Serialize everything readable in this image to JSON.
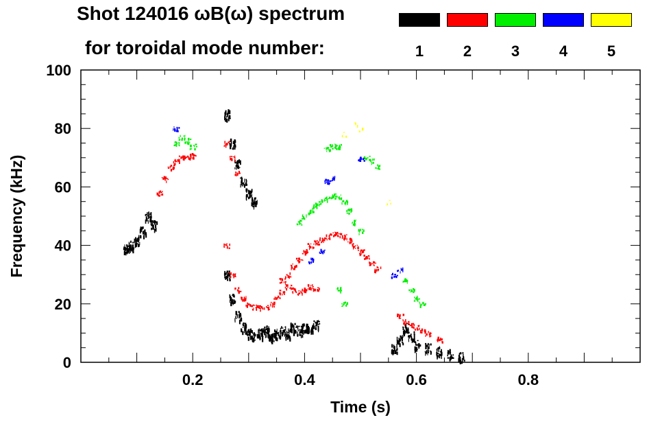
{
  "title_line1": "Shot 124016 ωB(ω) spectrum",
  "title_line2": "for toroidal mode number:",
  "chart_data": {
    "type": "heatmap",
    "xlabel": "Time (s)",
    "ylabel": "Frequency (kHz)",
    "xlim": [
      0.0,
      1.0
    ],
    "ylim": [
      0,
      100
    ],
    "xticks": [
      0.2,
      0.4,
      0.6,
      0.8
    ],
    "yticks": [
      0,
      20,
      40,
      60,
      80,
      100
    ],
    "legend_placement": "top-right",
    "legend": [
      {
        "mode": "1",
        "color": "#000000"
      },
      {
        "mode": "2",
        "color": "#ff0000"
      },
      {
        "mode": "3",
        "color": "#00ee00"
      },
      {
        "mode": "4",
        "color": "#0000ff"
      },
      {
        "mode": "5",
        "color": "#ffff00"
      }
    ],
    "series": [
      {
        "mode": "1",
        "points": [
          [
            0.08,
            39
          ],
          [
            0.09,
            40
          ],
          [
            0.1,
            42
          ],
          [
            0.11,
            45
          ],
          [
            0.12,
            50
          ],
          [
            0.13,
            47
          ],
          [
            0.26,
            85
          ],
          [
            0.27,
            75
          ],
          [
            0.28,
            68
          ],
          [
            0.29,
            62
          ],
          [
            0.3,
            58
          ],
          [
            0.31,
            55
          ],
          [
            0.26,
            30
          ],
          [
            0.27,
            22
          ],
          [
            0.28,
            16
          ],
          [
            0.29,
            12
          ],
          [
            0.3,
            10
          ],
          [
            0.31,
            9
          ],
          [
            0.32,
            10
          ],
          [
            0.33,
            11
          ],
          [
            0.34,
            9
          ],
          [
            0.35,
            10
          ],
          [
            0.36,
            11
          ],
          [
            0.37,
            10
          ],
          [
            0.38,
            12
          ],
          [
            0.39,
            11
          ],
          [
            0.4,
            12
          ],
          [
            0.41,
            12
          ],
          [
            0.42,
            13
          ],
          [
            0.56,
            5
          ],
          [
            0.57,
            8
          ],
          [
            0.58,
            12
          ],
          [
            0.59,
            9
          ],
          [
            0.6,
            6
          ],
          [
            0.62,
            5
          ],
          [
            0.64,
            4
          ],
          [
            0.66,
            3
          ],
          [
            0.68,
            2
          ]
        ]
      },
      {
        "mode": "2",
        "points": [
          [
            0.14,
            58
          ],
          [
            0.15,
            63
          ],
          [
            0.16,
            67
          ],
          [
            0.17,
            69
          ],
          [
            0.18,
            70
          ],
          [
            0.19,
            70
          ],
          [
            0.2,
            71
          ],
          [
            0.26,
            75
          ],
          [
            0.27,
            70
          ],
          [
            0.28,
            65
          ],
          [
            0.26,
            40
          ],
          [
            0.27,
            30
          ],
          [
            0.28,
            25
          ],
          [
            0.29,
            22
          ],
          [
            0.3,
            20
          ],
          [
            0.31,
            19
          ],
          [
            0.32,
            19
          ],
          [
            0.33,
            19
          ],
          [
            0.34,
            20
          ],
          [
            0.35,
            22
          ],
          [
            0.36,
            24
          ],
          [
            0.37,
            26
          ],
          [
            0.38,
            25
          ],
          [
            0.39,
            24
          ],
          [
            0.4,
            25
          ],
          [
            0.41,
            26
          ],
          [
            0.42,
            25
          ],
          [
            0.36,
            28
          ],
          [
            0.37,
            30
          ],
          [
            0.38,
            33
          ],
          [
            0.39,
            35
          ],
          [
            0.4,
            38
          ],
          [
            0.41,
            40
          ],
          [
            0.42,
            41
          ],
          [
            0.43,
            42
          ],
          [
            0.44,
            43
          ],
          [
            0.45,
            44
          ],
          [
            0.46,
            44
          ],
          [
            0.47,
            43
          ],
          [
            0.48,
            42
          ],
          [
            0.49,
            40
          ],
          [
            0.5,
            38
          ],
          [
            0.51,
            36
          ],
          [
            0.52,
            34
          ],
          [
            0.53,
            32
          ],
          [
            0.57,
            16
          ],
          [
            0.58,
            14
          ],
          [
            0.59,
            13
          ],
          [
            0.6,
            12
          ],
          [
            0.61,
            11
          ],
          [
            0.62,
            10
          ],
          [
            0.64,
            8
          ]
        ]
      },
      {
        "mode": "3",
        "points": [
          [
            0.17,
            75
          ],
          [
            0.18,
            77
          ],
          [
            0.19,
            76
          ],
          [
            0.2,
            74
          ],
          [
            0.39,
            48
          ],
          [
            0.4,
            50
          ],
          [
            0.41,
            52
          ],
          [
            0.42,
            54
          ],
          [
            0.43,
            55
          ],
          [
            0.44,
            56
          ],
          [
            0.45,
            57
          ],
          [
            0.46,
            57
          ],
          [
            0.47,
            55
          ],
          [
            0.48,
            52
          ],
          [
            0.49,
            48
          ],
          [
            0.5,
            45
          ],
          [
            0.44,
            73
          ],
          [
            0.45,
            74
          ],
          [
            0.46,
            74
          ],
          [
            0.51,
            70
          ],
          [
            0.52,
            69
          ],
          [
            0.53,
            67
          ],
          [
            0.46,
            25
          ],
          [
            0.47,
            20
          ],
          [
            0.58,
            28
          ],
          [
            0.59,
            25
          ],
          [
            0.6,
            22
          ],
          [
            0.61,
            20
          ]
        ]
      },
      {
        "mode": "4",
        "points": [
          [
            0.17,
            80
          ],
          [
            0.41,
            35
          ],
          [
            0.43,
            38
          ],
          [
            0.44,
            62
          ],
          [
            0.45,
            63
          ],
          [
            0.5,
            70
          ],
          [
            0.56,
            30
          ],
          [
            0.57,
            32
          ]
        ]
      },
      {
        "mode": "5",
        "points": [
          [
            0.47,
            78
          ],
          [
            0.49,
            82
          ],
          [
            0.5,
            80
          ],
          [
            0.55,
            55
          ]
        ]
      }
    ]
  }
}
